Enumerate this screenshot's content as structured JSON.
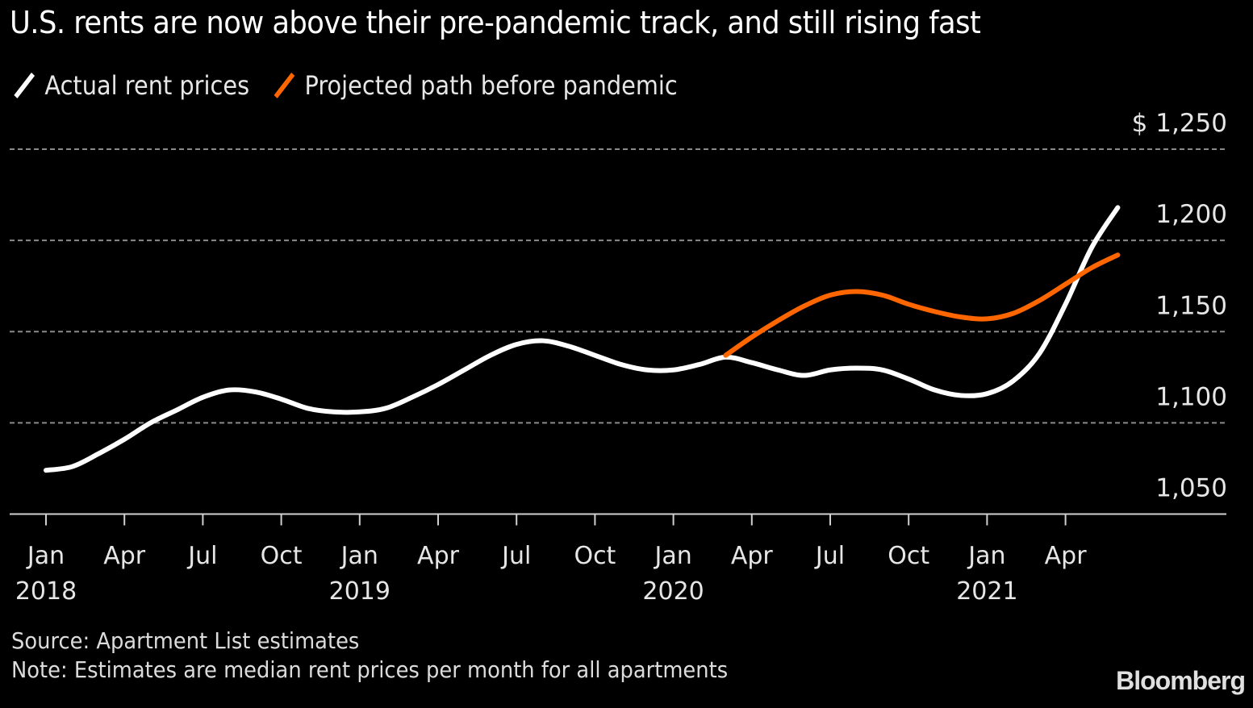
{
  "header": {
    "clipped_line": "",
    "title": "U.S. rents are now above their pre-pandemic track, and still rising fast"
  },
  "legend": [
    {
      "label": "Actual rent prices",
      "color": "#FFFFFF"
    },
    {
      "label": "Projected path before pandemic",
      "color": "#FF6600"
    }
  ],
  "footer": {
    "source": "Source: Apartment List estimates",
    "note": "Note: Estimates are median rent prices per month for all apartments",
    "logo": "Bloomberg"
  },
  "chart_data": {
    "type": "line",
    "title": "U.S. rents are now above their pre-pandemic track, and still rising fast",
    "xlabel": "",
    "ylabel": "",
    "ylim": [
      1050,
      1250
    ],
    "y_ticks": [
      1050,
      1100,
      1150,
      1200,
      1250
    ],
    "y_tick_labels": [
      "1,050",
      "1,100",
      "1,150",
      "1,200",
      "$ 1,250"
    ],
    "y_axis_position": "right",
    "grid": true,
    "legend_position": "top-left",
    "x_range": [
      "2018-01",
      "2021-06"
    ],
    "x_ticks": [
      {
        "month": "2018-01",
        "label": "Jan",
        "year": "2018"
      },
      {
        "month": "2018-04",
        "label": "Apr",
        "year": ""
      },
      {
        "month": "2018-07",
        "label": "Jul",
        "year": ""
      },
      {
        "month": "2018-10",
        "label": "Oct",
        "year": ""
      },
      {
        "month": "2019-01",
        "label": "Jan",
        "year": "2019"
      },
      {
        "month": "2019-04",
        "label": "Apr",
        "year": ""
      },
      {
        "month": "2019-07",
        "label": "Jul",
        "year": ""
      },
      {
        "month": "2019-10",
        "label": "Oct",
        "year": ""
      },
      {
        "month": "2020-01",
        "label": "Jan",
        "year": "2020"
      },
      {
        "month": "2020-04",
        "label": "Apr",
        "year": ""
      },
      {
        "month": "2020-07",
        "label": "Jul",
        "year": ""
      },
      {
        "month": "2020-10",
        "label": "Oct",
        "year": ""
      },
      {
        "month": "2021-01",
        "label": "Jan",
        "year": "2021"
      },
      {
        "month": "2021-04",
        "label": "Apr",
        "year": ""
      }
    ],
    "series": [
      {
        "name": "Actual rent prices",
        "color": "#FFFFFF",
        "x": [
          "2018-01",
          "2018-02",
          "2018-03",
          "2018-04",
          "2018-05",
          "2018-06",
          "2018-07",
          "2018-08",
          "2018-09",
          "2018-10",
          "2018-11",
          "2018-12",
          "2019-01",
          "2019-02",
          "2019-03",
          "2019-04",
          "2019-05",
          "2019-06",
          "2019-07",
          "2019-08",
          "2019-09",
          "2019-10",
          "2019-11",
          "2019-12",
          "2020-01",
          "2020-02",
          "2020-03",
          "2020-04",
          "2020-05",
          "2020-06",
          "2020-07",
          "2020-08",
          "2020-09",
          "2020-10",
          "2020-11",
          "2020-12",
          "2021-01",
          "2021-02",
          "2021-03",
          "2021-04",
          "2021-05",
          "2021-06"
        ],
        "values": [
          1074,
          1076,
          1083,
          1091,
          1100,
          1107,
          1114,
          1118,
          1117,
          1113,
          1108,
          1106,
          1106,
          1108,
          1114,
          1121,
          1129,
          1137,
          1143,
          1145,
          1142,
          1137,
          1132,
          1129,
          1129,
          1132,
          1136,
          1133,
          1129,
          1126,
          1129,
          1130,
          1129,
          1124,
          1118,
          1115,
          1116,
          1123,
          1138,
          1165,
          1196,
          1218
        ]
      },
      {
        "name": "Projected path before pandemic",
        "color": "#FF6600",
        "x": [
          "2020-03",
          "2020-04",
          "2020-05",
          "2020-06",
          "2020-07",
          "2020-08",
          "2020-09",
          "2020-10",
          "2020-11",
          "2020-12",
          "2021-01",
          "2021-02",
          "2021-03",
          "2021-04",
          "2021-05",
          "2021-06"
        ],
        "values": [
          1137,
          1147,
          1156,
          1164,
          1170,
          1172,
          1170,
          1165,
          1161,
          1158,
          1157,
          1160,
          1167,
          1176,
          1185,
          1192
        ]
      }
    ]
  }
}
